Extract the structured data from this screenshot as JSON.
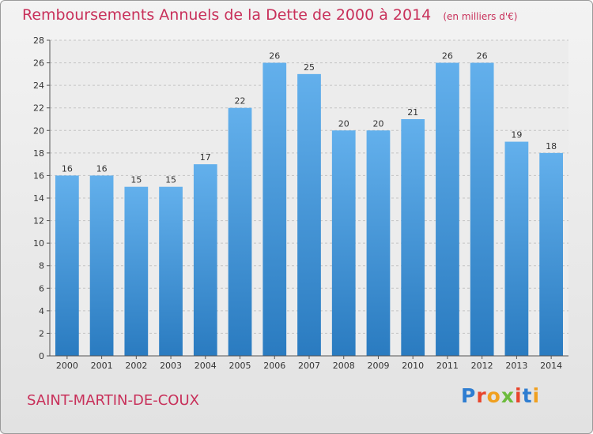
{
  "header": {
    "title": "Remboursements Annuels de la Dette de 2000 à 2014",
    "unit": "(en milliers d'€)"
  },
  "footer": {
    "commune": "SAINT-MARTIN-DE-COUX",
    "brand": "Proxiti"
  },
  "colors": {
    "title": "#c8305a",
    "bar_top": "#63b0ec",
    "bar_bottom": "#2a7bc0",
    "brand_letters": [
      "#2e7dd1",
      "#e8452c",
      "#f0a020",
      "#6cbb3c",
      "#e8452c",
      "#2e7dd1",
      "#f0a020"
    ]
  },
  "chart_data": {
    "type": "bar",
    "title": "Remboursements Annuels de la Dette de 2000 à 2014",
    "subtitle": "(en milliers d'€)",
    "xlabel": "",
    "ylabel": "",
    "categories": [
      "2000",
      "2001",
      "2002",
      "2003",
      "2004",
      "2005",
      "2006",
      "2007",
      "2008",
      "2009",
      "2010",
      "2011",
      "2012",
      "2013",
      "2014"
    ],
    "values": [
      16,
      16,
      15,
      15,
      17,
      22,
      26,
      25,
      20,
      20,
      21,
      26,
      26,
      19,
      18
    ],
    "ylim": [
      0,
      28
    ],
    "yticks": [
      0,
      2,
      4,
      6,
      8,
      10,
      12,
      14,
      16,
      18,
      20,
      22,
      24,
      26,
      28
    ],
    "grid": true,
    "data_labels": true
  }
}
